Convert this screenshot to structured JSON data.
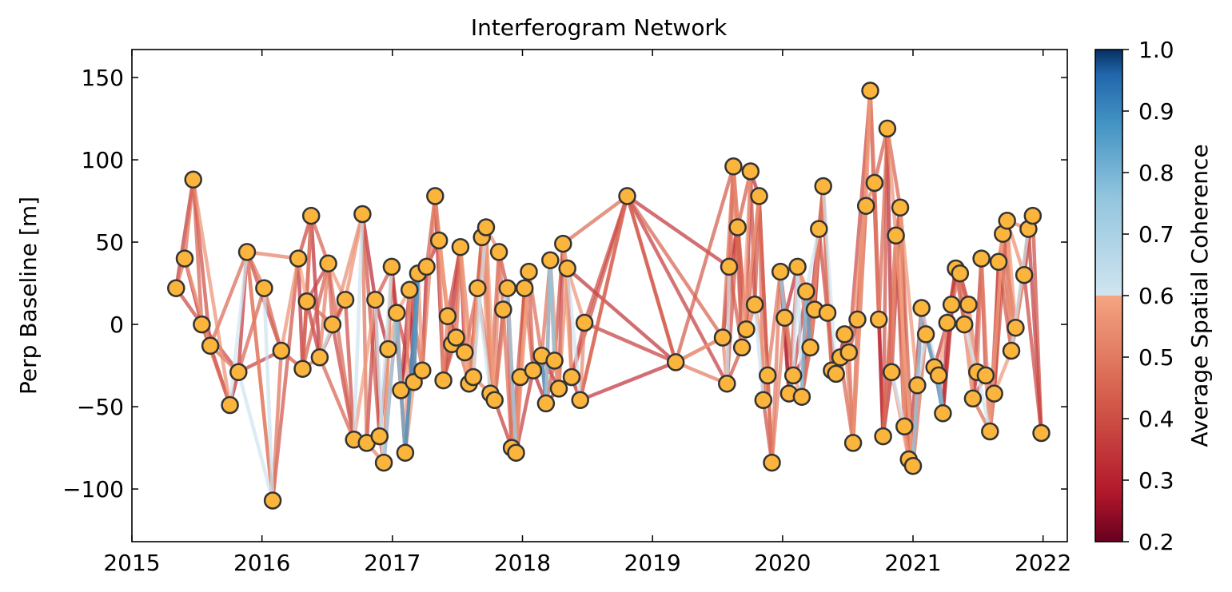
{
  "chart_data": {
    "type": "scatter",
    "title": "Interferogram Network",
    "xlabel": "",
    "ylabel": "Perp Baseline [m]",
    "xlim": [
      "2015-01-01",
      "2022-03-10"
    ],
    "ylim": [
      -132,
      167
    ],
    "x_ticks": [
      "2015",
      "2016",
      "2017",
      "2018",
      "2019",
      "2020",
      "2021",
      "2022"
    ],
    "y_ticks": [
      150,
      100,
      50,
      0,
      -50,
      -100
    ],
    "y_tick_labels": [
      "150",
      "100",
      "50",
      "0",
      "−50",
      "−100"
    ],
    "grid": false,
    "colorbar": {
      "label": "Average Spatial Coherence",
      "range": [
        0.2,
        1.0
      ],
      "ticks": [
        "0.2",
        "0.3",
        "0.4",
        "0.5",
        "0.6",
        "0.7",
        "0.8",
        "0.9",
        "1.0"
      ],
      "colormap": "RdBu",
      "colors": {
        "low": "#67001f",
        "mid_low": "#b2182b",
        "mid": "#f4a582",
        "mid_high": "#d1e5f0",
        "high": "#053061"
      }
    },
    "point_color": "#fbb43c",
    "point_edge": "#333333",
    "acquisitions": [
      {
        "date": "2015-05-05",
        "bperp": 22
      },
      {
        "date": "2015-05-29",
        "bperp": 40
      },
      {
        "date": "2015-06-22",
        "bperp": 88
      },
      {
        "date": "2015-07-16",
        "bperp": 0
      },
      {
        "date": "2015-08-09",
        "bperp": -13
      },
      {
        "date": "2015-10-03",
        "bperp": -49
      },
      {
        "date": "2015-10-27",
        "bperp": -29
      },
      {
        "date": "2015-11-20",
        "bperp": 44
      },
      {
        "date": "2016-01-07",
        "bperp": 22
      },
      {
        "date": "2016-01-31",
        "bperp": -107
      },
      {
        "date": "2016-02-24",
        "bperp": -16
      },
      {
        "date": "2016-04-12",
        "bperp": 40
      },
      {
        "date": "2016-04-24",
        "bperp": -27
      },
      {
        "date": "2016-05-06",
        "bperp": 14
      },
      {
        "date": "2016-05-18",
        "bperp": 66
      },
      {
        "date": "2016-06-11",
        "bperp": -20
      },
      {
        "date": "2016-07-05",
        "bperp": 37
      },
      {
        "date": "2016-07-17",
        "bperp": 0
      },
      {
        "date": "2016-08-22",
        "bperp": 15
      },
      {
        "date": "2016-09-15",
        "bperp": -70
      },
      {
        "date": "2016-10-09",
        "bperp": 67
      },
      {
        "date": "2016-10-21",
        "bperp": -72
      },
      {
        "date": "2016-11-14",
        "bperp": 15
      },
      {
        "date": "2016-11-26",
        "bperp": -68
      },
      {
        "date": "2016-12-08",
        "bperp": -84
      },
      {
        "date": "2016-12-20",
        "bperp": -15
      },
      {
        "date": "2016-12-30",
        "bperp": 35
      },
      {
        "date": "2017-01-13",
        "bperp": 7
      },
      {
        "date": "2017-01-25",
        "bperp": -40
      },
      {
        "date": "2017-02-06",
        "bperp": -78
      },
      {
        "date": "2017-02-18",
        "bperp": 21
      },
      {
        "date": "2017-03-02",
        "bperp": -35
      },
      {
        "date": "2017-03-14",
        "bperp": 31
      },
      {
        "date": "2017-03-26",
        "bperp": -28
      },
      {
        "date": "2017-04-07",
        "bperp": 35
      },
      {
        "date": "2017-04-31",
        "bperp": 78
      },
      {
        "date": "2017-05-12",
        "bperp": 51
      },
      {
        "date": "2017-05-24",
        "bperp": -34
      },
      {
        "date": "2017-06-05",
        "bperp": 5
      },
      {
        "date": "2017-06-17",
        "bperp": -12
      },
      {
        "date": "2017-06-29",
        "bperp": -8
      },
      {
        "date": "2017-07-11",
        "bperp": 47
      },
      {
        "date": "2017-07-23",
        "bperp": -17
      },
      {
        "date": "2017-08-04",
        "bperp": -36
      },
      {
        "date": "2017-08-16",
        "bperp": -32
      },
      {
        "date": "2017-08-28",
        "bperp": 22
      },
      {
        "date": "2017-09-09",
        "bperp": 53
      },
      {
        "date": "2017-09-21",
        "bperp": 59
      },
      {
        "date": "2017-10-03",
        "bperp": -42
      },
      {
        "date": "2017-10-15",
        "bperp": -46
      },
      {
        "date": "2017-10-27",
        "bperp": 44
      },
      {
        "date": "2017-11-08",
        "bperp": 9
      },
      {
        "date": "2017-11-20",
        "bperp": 22
      },
      {
        "date": "2017-12-02",
        "bperp": -75
      },
      {
        "date": "2017-12-14",
        "bperp": -78
      },
      {
        "date": "2017-12-26",
        "bperp": -32
      },
      {
        "date": "2018-01-07",
        "bperp": 22
      },
      {
        "date": "2018-01-19",
        "bperp": 32
      },
      {
        "date": "2018-01-31",
        "bperp": -28
      },
      {
        "date": "2018-02-24",
        "bperp": -19
      },
      {
        "date": "2018-03-08",
        "bperp": -48
      },
      {
        "date": "2018-03-20",
        "bperp": 39
      },
      {
        "date": "2018-04-01",
        "bperp": -22
      },
      {
        "date": "2018-04-13",
        "bperp": -39
      },
      {
        "date": "2018-04-25",
        "bperp": 49
      },
      {
        "date": "2018-05-07",
        "bperp": 34
      },
      {
        "date": "2018-05-19",
        "bperp": -32
      },
      {
        "date": "2018-06-12",
        "bperp": -46
      },
      {
        "date": "2018-06-24",
        "bperp": 1
      },
      {
        "date": "2018-10-22",
        "bperp": 78
      },
      {
        "date": "2019-03-07",
        "bperp": -23
      },
      {
        "date": "2019-07-17",
        "bperp": -8
      },
      {
        "date": "2019-07-29",
        "bperp": -36
      },
      {
        "date": "2019-08-04",
        "bperp": 35
      },
      {
        "date": "2019-08-16",
        "bperp": 96
      },
      {
        "date": "2019-08-28",
        "bperp": 59
      },
      {
        "date": "2019-09-09",
        "bperp": -14
      },
      {
        "date": "2019-09-21",
        "bperp": -3
      },
      {
        "date": "2019-10-03",
        "bperp": 93
      },
      {
        "date": "2019-10-15",
        "bperp": 12
      },
      {
        "date": "2019-10-27",
        "bperp": 78
      },
      {
        "date": "2019-11-08",
        "bperp": -46
      },
      {
        "date": "2019-11-20",
        "bperp": -31
      },
      {
        "date": "2019-12-02",
        "bperp": -84
      },
      {
        "date": "2019-12-26",
        "bperp": 32
      },
      {
        "date": "2020-01-07",
        "bperp": 4
      },
      {
        "date": "2020-01-19",
        "bperp": -42
      },
      {
        "date": "2020-01-31",
        "bperp": -31
      },
      {
        "date": "2020-02-12",
        "bperp": 35
      },
      {
        "date": "2020-02-24",
        "bperp": -44
      },
      {
        "date": "2020-03-07",
        "bperp": 20
      },
      {
        "date": "2020-03-19",
        "bperp": -14
      },
      {
        "date": "2020-03-31",
        "bperp": 9
      },
      {
        "date": "2020-04-12",
        "bperp": 58
      },
      {
        "date": "2020-04-24",
        "bperp": 84
      },
      {
        "date": "2020-05-06",
        "bperp": 7
      },
      {
        "date": "2020-05-18",
        "bperp": -28
      },
      {
        "date": "2020-05-30",
        "bperp": -30
      },
      {
        "date": "2020-06-11",
        "bperp": -20
      },
      {
        "date": "2020-06-23",
        "bperp": -6
      },
      {
        "date": "2020-07-05",
        "bperp": -17
      },
      {
        "date": "2020-07-17",
        "bperp": -72
      },
      {
        "date": "2020-07-29",
        "bperp": 3
      },
      {
        "date": "2020-08-22",
        "bperp": 72
      },
      {
        "date": "2020-09-03",
        "bperp": 142
      },
      {
        "date": "2020-09-15",
        "bperp": 86
      },
      {
        "date": "2020-09-27",
        "bperp": 3
      },
      {
        "date": "2020-10-09",
        "bperp": -68
      },
      {
        "date": "2020-10-21",
        "bperp": 119
      },
      {
        "date": "2020-11-02",
        "bperp": -29
      },
      {
        "date": "2020-11-14",
        "bperp": 54
      },
      {
        "date": "2020-11-26",
        "bperp": 71
      },
      {
        "date": "2020-12-08",
        "bperp": -62
      },
      {
        "date": "2020-12-20",
        "bperp": -82
      },
      {
        "date": "2021-01-01",
        "bperp": -86
      },
      {
        "date": "2021-01-13",
        "bperp": -37
      },
      {
        "date": "2021-01-25",
        "bperp": 10
      },
      {
        "date": "2021-02-06",
        "bperp": -6
      },
      {
        "date": "2021-03-02",
        "bperp": -26
      },
      {
        "date": "2021-03-14",
        "bperp": -31
      },
      {
        "date": "2021-03-26",
        "bperp": -54
      },
      {
        "date": "2021-04-07",
        "bperp": 1
      },
      {
        "date": "2021-04-19",
        "bperp": 12
      },
      {
        "date": "2021-05-01",
        "bperp": 34
      },
      {
        "date": "2021-05-13",
        "bperp": 31
      },
      {
        "date": "2021-05-25",
        "bperp": 0
      },
      {
        "date": "2021-06-06",
        "bperp": 12
      },
      {
        "date": "2021-06-18",
        "bperp": -45
      },
      {
        "date": "2021-06-30",
        "bperp": -29
      },
      {
        "date": "2021-07-12",
        "bperp": 40
      },
      {
        "date": "2021-07-24",
        "bperp": -31
      },
      {
        "date": "2021-08-05",
        "bperp": -65
      },
      {
        "date": "2021-08-17",
        "bperp": -42
      },
      {
        "date": "2021-08-29",
        "bperp": 38
      },
      {
        "date": "2021-09-10",
        "bperp": 55
      },
      {
        "date": "2021-09-22",
        "bperp": 63
      },
      {
        "date": "2021-10-04",
        "bperp": -16
      },
      {
        "date": "2021-10-16",
        "bperp": -2
      },
      {
        "date": "2021-11-09",
        "bperp": 30
      },
      {
        "date": "2021-11-21",
        "bperp": 58
      },
      {
        "date": "2021-12-03",
        "bperp": 66
      },
      {
        "date": "2021-12-27",
        "bperp": -66
      }
    ],
    "coherence_high_pairs": [
      {
        "from": "2016-12-08",
        "to": "2017-01-13",
        "coherence": 0.72
      },
      {
        "from": "2017-01-13",
        "to": "2017-01-25",
        "coherence": 0.78
      },
      {
        "from": "2017-01-25",
        "to": "2017-02-06",
        "coherence": 0.82
      },
      {
        "from": "2017-02-06",
        "to": "2017-03-14",
        "coherence": 0.88
      },
      {
        "from": "2017-01-25",
        "to": "2017-03-02",
        "coherence": 0.8
      },
      {
        "from": "2017-03-02",
        "to": "2017-03-14",
        "coherence": 0.86
      },
      {
        "from": "2017-12-14",
        "to": "2017-11-20",
        "coherence": 0.72
      },
      {
        "from": "2018-02-24",
        "to": "2018-03-08",
        "coherence": 0.86
      },
      {
        "from": "2018-03-08",
        "to": "2018-03-20",
        "coherence": 0.74
      },
      {
        "from": "2018-03-20",
        "to": "2018-04-01",
        "coherence": 0.76
      },
      {
        "from": "2020-01-07",
        "to": "2019-12-26",
        "coherence": 0.74
      },
      {
        "from": "2020-01-19",
        "to": "2020-01-31",
        "coherence": 0.78
      },
      {
        "from": "2020-03-07",
        "to": "2020-03-19",
        "coherence": 0.84
      },
      {
        "from": "2020-02-24",
        "to": "2020-03-07",
        "coherence": 0.78
      },
      {
        "from": "2020-12-20",
        "to": "2021-01-01",
        "coherence": 0.86
      },
      {
        "from": "2021-01-25",
        "to": "2021-01-01",
        "coherence": 0.74
      },
      {
        "from": "2021-02-06",
        "to": "2021-03-02",
        "coherence": 0.84
      },
      {
        "from": "2021-03-02",
        "to": "2021-03-26",
        "coherence": 0.82
      },
      {
        "from": "2021-03-14",
        "to": "2021-03-26",
        "coherence": 0.8
      },
      {
        "from": "2021-11-21",
        "to": "2021-12-03",
        "coherence": 0.74
      }
    ]
  }
}
